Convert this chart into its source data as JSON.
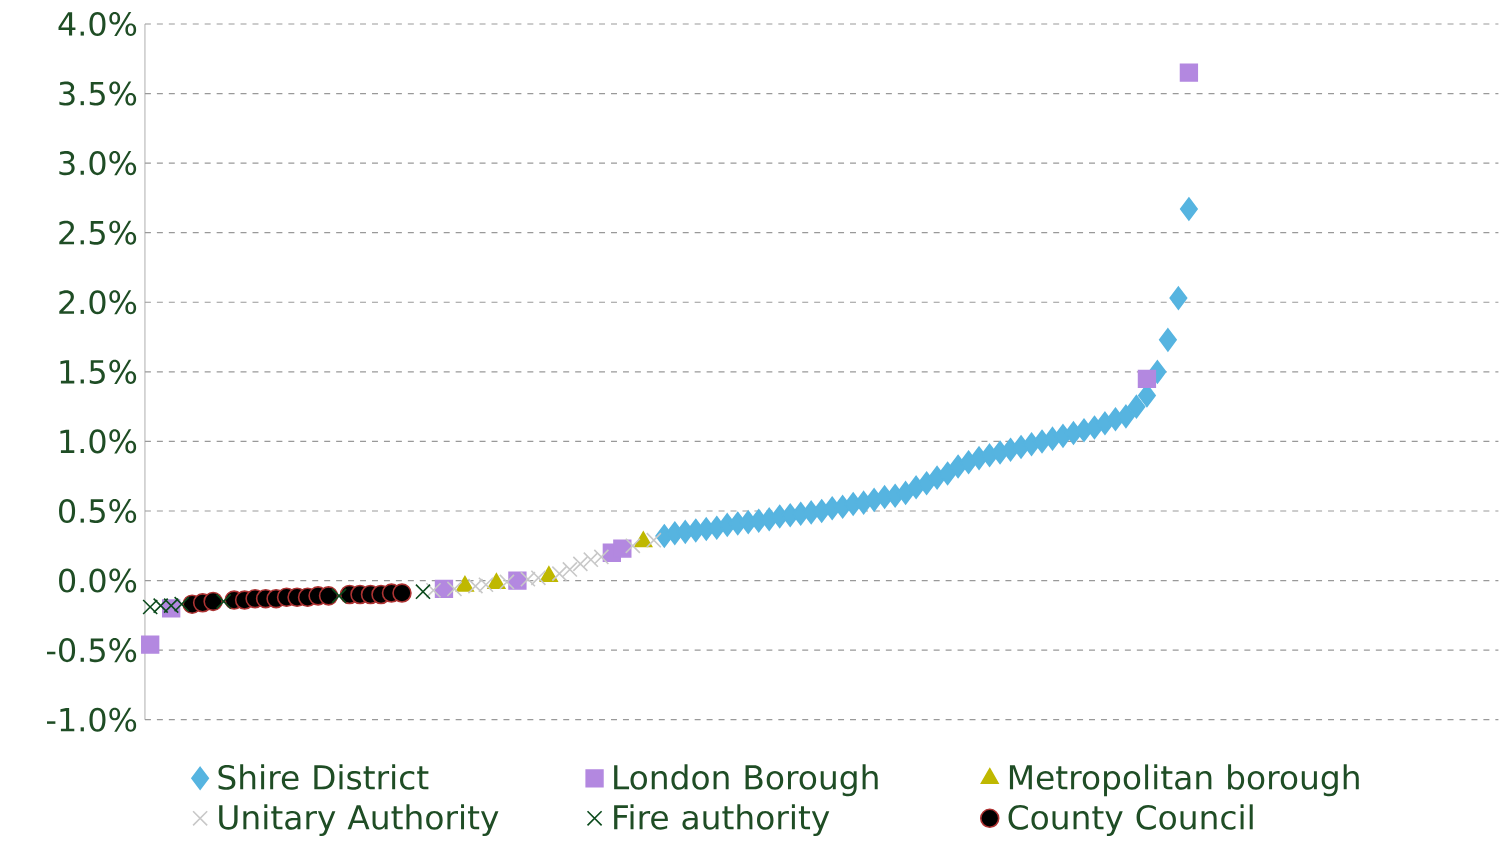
{
  "chart_data": {
    "type": "scatter",
    "categories": [
      null,
      null,
      null,
      null,
      null,
      null,
      null,
      null,
      null,
      null,
      null,
      null,
      null,
      null,
      null,
      null,
      null,
      null,
      null,
      null,
      null,
      null,
      null,
      null,
      null,
      null,
      null,
      null,
      null,
      null,
      null,
      null,
      null,
      null,
      null,
      null,
      null,
      null,
      null,
      null,
      null,
      null,
      null,
      null,
      null,
      null,
      null,
      null,
      null,
      null,
      null,
      null,
      null,
      null,
      null,
      null,
      null,
      null,
      null,
      null,
      null,
      null,
      null,
      null,
      null,
      null,
      null,
      null,
      null,
      null,
      null,
      null,
      null,
      null,
      null,
      null,
      null,
      null,
      null,
      null,
      null,
      null,
      null,
      null,
      null,
      null,
      null,
      null,
      null,
      null,
      null,
      null,
      null,
      null,
      null,
      null,
      null,
      null,
      null,
      null,
      null,
      null,
      null,
      null,
      null,
      null,
      null,
      null,
      null,
      null,
      null,
      null,
      null,
      null,
      null,
      null,
      null,
      null,
      null,
      null,
      null,
      null,
      null,
      null,
      null,
      null,
      null,
      null,
      null
    ],
    "series": [
      {
        "name": "Shire District",
        "color": "#56b4e0",
        "marker": "diamond",
        "values": [
          null,
          null,
          null,
          null,
          null,
          null,
          null,
          null,
          null,
          null,
          null,
          null,
          null,
          null,
          null,
          null,
          null,
          null,
          null,
          null,
          null,
          null,
          null,
          null,
          null,
          null,
          null,
          null,
          null,
          null,
          null,
          null,
          null,
          null,
          null,
          null,
          null,
          null,
          null,
          null,
          null,
          null,
          null,
          null,
          null,
          null,
          null,
          null,
          null,
          0.32,
          0.34,
          0.35,
          0.36,
          0.37,
          0.38,
          0.4,
          0.41,
          0.42,
          0.43,
          0.44,
          0.46,
          0.47,
          0.48,
          0.49,
          0.5,
          0.52,
          0.53,
          0.55,
          0.56,
          0.58,
          0.6,
          0.61,
          0.63,
          0.67,
          0.7,
          0.74,
          0.77,
          0.82,
          0.85,
          0.88,
          0.9,
          0.92,
          0.94,
          0.96,
          0.98,
          1.0,
          1.02,
          1.04,
          1.06,
          1.08,
          1.1,
          1.13,
          1.16,
          1.18,
          1.25,
          1.33,
          1.5,
          1.73,
          2.03,
          2.67,
          null,
          null,
          null,
          null,
          null,
          null,
          null,
          null,
          null,
          null,
          null,
          null,
          null,
          null,
          null,
          null,
          null,
          null,
          null,
          null,
          null,
          null,
          null,
          null,
          null,
          null,
          null,
          null,
          null
        ]
      },
      {
        "name": "London Borough",
        "color": "#b388e0",
        "marker": "square",
        "values": [
          -0.46,
          null,
          -0.2,
          null,
          null,
          null,
          null,
          null,
          null,
          null,
          null,
          null,
          null,
          null,
          null,
          null,
          null,
          null,
          null,
          null,
          null,
          null,
          null,
          null,
          null,
          null,
          null,
          null,
          -0.06,
          null,
          null,
          null,
          null,
          null,
          null,
          0.0,
          null,
          null,
          null,
          null,
          null,
          null,
          null,
          null,
          0.2,
          0.23,
          null,
          null,
          null,
          null,
          null,
          null,
          null,
          null,
          null,
          null,
          null,
          null,
          null,
          null,
          null,
          null,
          null,
          null,
          null,
          null,
          null,
          null,
          null,
          null,
          null,
          null,
          null,
          null,
          null,
          null,
          null,
          null,
          null,
          null,
          null,
          null,
          null,
          null,
          null,
          null,
          null,
          null,
          null,
          null,
          null,
          null,
          null,
          null,
          null,
          1.45,
          null,
          null,
          null,
          3.65,
          null,
          null,
          null,
          null,
          null,
          null,
          null,
          null,
          null,
          null,
          null,
          null,
          null,
          null,
          null,
          null,
          null,
          null,
          null,
          null,
          null,
          null,
          null,
          null,
          null,
          null,
          null,
          null,
          null
        ]
      },
      {
        "name": "Metropolitan borough",
        "color": "#bfb800",
        "marker": "triangle",
        "values": [
          null,
          null,
          null,
          null,
          null,
          null,
          null,
          null,
          null,
          null,
          null,
          null,
          null,
          null,
          null,
          null,
          null,
          null,
          null,
          null,
          null,
          null,
          null,
          null,
          null,
          null,
          null,
          null,
          null,
          null,
          -0.04,
          null,
          null,
          -0.02,
          null,
          null,
          null,
          null,
          0.03,
          null,
          null,
          null,
          null,
          null,
          null,
          null,
          null,
          0.28,
          null,
          null,
          null,
          null,
          null,
          null,
          null,
          null,
          null,
          null,
          null,
          null,
          null,
          null,
          null,
          null,
          null,
          null,
          null,
          null,
          null,
          null,
          null,
          null,
          null,
          null,
          null,
          null,
          null,
          null,
          null,
          null,
          null,
          null,
          null,
          null,
          null,
          null,
          null,
          null,
          null,
          null,
          null,
          null,
          null,
          null,
          null,
          null,
          null,
          null,
          null,
          null,
          null,
          null,
          null,
          null,
          null,
          null,
          null,
          null,
          null,
          null,
          null,
          null,
          null,
          null,
          null,
          null,
          null,
          null,
          null,
          null,
          null,
          null,
          null,
          null,
          null,
          null,
          null,
          null,
          null
        ]
      },
      {
        "name": "Unitary Authority",
        "color": "#c8c8c8",
        "marker": "cross",
        "values": [
          null,
          null,
          null,
          null,
          null,
          null,
          null,
          null,
          null,
          null,
          null,
          null,
          null,
          null,
          null,
          null,
          null,
          null,
          null,
          null,
          null,
          null,
          null,
          null,
          null,
          null,
          null,
          -0.07,
          null,
          -0.06,
          null,
          -0.04,
          -0.03,
          null,
          -0.01,
          null,
          0.01,
          0.02,
          null,
          0.05,
          0.08,
          0.12,
          0.15,
          0.17,
          null,
          null,
          0.25,
          null,
          0.29,
          null,
          null,
          null,
          null,
          null,
          null,
          null,
          null,
          null,
          null,
          null,
          null,
          null,
          null,
          null,
          null,
          null,
          null,
          null,
          null,
          null,
          null,
          null,
          null,
          null,
          null,
          null,
          null,
          null,
          null,
          null,
          null,
          null,
          null,
          null,
          null,
          null,
          null,
          null,
          null,
          null,
          null,
          null,
          null,
          null,
          null,
          null,
          null,
          null,
          null,
          null,
          null,
          null,
          null,
          null,
          null,
          null,
          null,
          null,
          null,
          null,
          null,
          null,
          null,
          null,
          null,
          null,
          null,
          null,
          null,
          null,
          null,
          null,
          null,
          null,
          null,
          null,
          null,
          null,
          null
        ]
      },
      {
        "name": "Fire authority",
        "color": "#0b4a1c",
        "marker": "cross",
        "values": [
          -0.19,
          -0.18,
          -0.18,
          -0.17,
          null,
          null,
          null,
          -0.15,
          null,
          null,
          null,
          null,
          null,
          null,
          null,
          null,
          null,
          null,
          -0.11,
          null,
          null,
          null,
          null,
          null,
          null,
          null,
          -0.08,
          null,
          null,
          null,
          null,
          null,
          null,
          null,
          null,
          null,
          null,
          null,
          null,
          null,
          null,
          null,
          null,
          null,
          null,
          null,
          null,
          null,
          null,
          null,
          null,
          null,
          null,
          null,
          null,
          null,
          null,
          null,
          null,
          null,
          null,
          null,
          null,
          null,
          null,
          null,
          null,
          null,
          null,
          null,
          null,
          null,
          null,
          null,
          null,
          null,
          null,
          null,
          null,
          null,
          null,
          null,
          null,
          null,
          null,
          null,
          null,
          null,
          null,
          null,
          null,
          null,
          null,
          null,
          null,
          null,
          null,
          null,
          null,
          null,
          null,
          null,
          null,
          null,
          null,
          null,
          null,
          null,
          null,
          null,
          null,
          null,
          null,
          null,
          null,
          null,
          null,
          null,
          null,
          null,
          null,
          null,
          null,
          null,
          null,
          null,
          null,
          null,
          null
        ]
      },
      {
        "name": "County Council",
        "color": "#000000",
        "marker": "circle",
        "values": [
          null,
          null,
          null,
          null,
          -0.17,
          -0.16,
          -0.15,
          null,
          -0.14,
          -0.14,
          -0.13,
          -0.13,
          -0.13,
          -0.12,
          -0.12,
          -0.12,
          -0.11,
          -0.11,
          null,
          -0.1,
          -0.1,
          -0.1,
          -0.1,
          -0.09,
          -0.09,
          null,
          null,
          null,
          null,
          null,
          null,
          null,
          null,
          null,
          null,
          null,
          null,
          null,
          null,
          null,
          null,
          null,
          null,
          null,
          null,
          null,
          null,
          null,
          null,
          null,
          null,
          null,
          null,
          null,
          null,
          null,
          null,
          null,
          null,
          null,
          null,
          null,
          null,
          null,
          null,
          null,
          null,
          null,
          null,
          null,
          null,
          null,
          null,
          null,
          null,
          null,
          null,
          null,
          null,
          null,
          null,
          null,
          null,
          null,
          null,
          null,
          null,
          null,
          null,
          null,
          null,
          null,
          null,
          null,
          null,
          null,
          null,
          null,
          null,
          null,
          null,
          null,
          null,
          null,
          null,
          null,
          null,
          null,
          null,
          null,
          null,
          null,
          null,
          null,
          null,
          null,
          null,
          null,
          null,
          null,
          null,
          null,
          null,
          null,
          null,
          null,
          null,
          null,
          null
        ]
      }
    ],
    "ylim": [
      -1.0,
      4.0
    ],
    "yticks": [
      {
        "value": -1.0,
        "label": "-1.0%"
      },
      {
        "value": -0.5,
        "label": "-0.5%"
      },
      {
        "value": 0.0,
        "label": "0.0%"
      },
      {
        "value": 0.5,
        "label": "0.5%"
      },
      {
        "value": 1.0,
        "label": "1.0%"
      },
      {
        "value": 1.5,
        "label": "1.5%"
      },
      {
        "value": 2.0,
        "label": "2.0%"
      },
      {
        "value": 2.5,
        "label": "2.5%"
      },
      {
        "value": 3.0,
        "label": "3.0%"
      },
      {
        "value": 3.5,
        "label": "3.5%"
      },
      {
        "value": 4.0,
        "label": "4.0%"
      }
    ],
    "grid": "y",
    "legend": "bottom",
    "tick_labels": "y"
  }
}
